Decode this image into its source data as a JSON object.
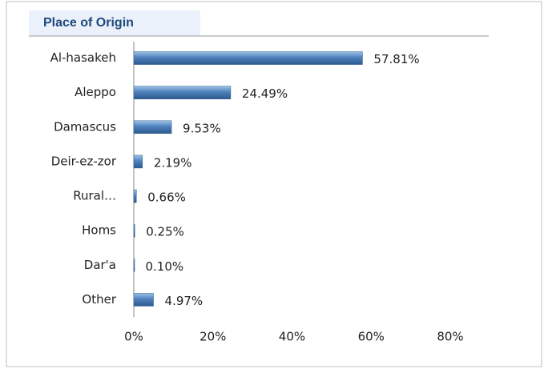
{
  "chart_data": {
    "type": "bar",
    "orientation": "horizontal",
    "title": "Place of Origin",
    "categories": [
      "Al-hasakeh",
      "Aleppo",
      "Damascus",
      "Deir-ez-zor",
      "Rural…",
      "Homs",
      "Dar'a",
      "Other"
    ],
    "values": [
      57.81,
      24.49,
      9.53,
      2.19,
      0.66,
      0.25,
      0.1,
      4.97
    ],
    "value_labels": [
      "57.81%",
      "24.49%",
      "9.53%",
      "2.19%",
      "0.66%",
      "0.25%",
      "0.10%",
      "4.97%"
    ],
    "color": "#4f81bd",
    "xlim": [
      0,
      80
    ],
    "xticks": [
      {
        "value": 0,
        "label": "0%"
      },
      {
        "value": 20,
        "label": "20%"
      },
      {
        "value": 40,
        "label": "40%"
      },
      {
        "value": 60,
        "label": "60%"
      },
      {
        "value": 80,
        "label": "80%"
      }
    ]
  }
}
